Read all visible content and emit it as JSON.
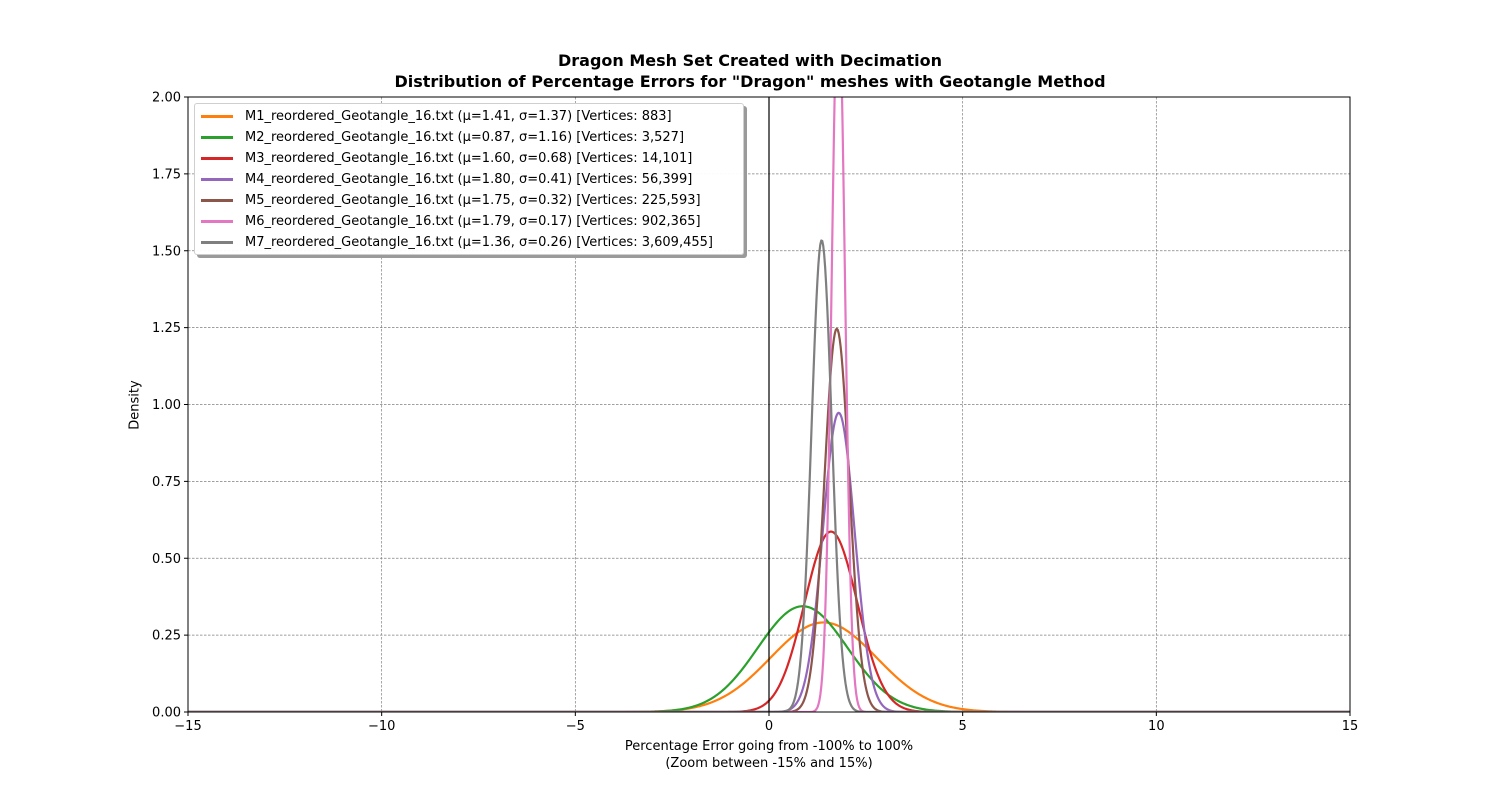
{
  "chart_data": {
    "type": "line",
    "title": "Dragon Mesh Set Created with Decimation",
    "subtitle": "Distribution of Percentage Errors for \"Dragon\" meshes with Geotangle Method",
    "xlabel": "Percentage Error going from -100% to 100%",
    "xlabel_note": "(Zoom between -15% and 15%)",
    "ylabel": "Density",
    "xlim": [
      -15,
      15
    ],
    "ylim": [
      0,
      2
    ],
    "x_ticks": [
      -15,
      -10,
      -5,
      0,
      5,
      10,
      15
    ],
    "x_tick_labels": [
      "−15",
      "−10",
      "−5",
      "0",
      "5",
      "10",
      "15"
    ],
    "y_ticks": [
      0,
      0.25,
      0.5,
      0.75,
      1.0,
      1.25,
      1.5,
      1.75,
      2.0
    ],
    "y_tick_labels": [
      "0.00",
      "0.25",
      "0.50",
      "0.75",
      "1.00",
      "1.25",
      "1.50",
      "1.75",
      "2.00"
    ],
    "grid": true,
    "vertical_reference_line": 0,
    "legend_position": "upper-left",
    "series": [
      {
        "name": "M1_reordered_Geotangle_16.txt (μ=1.41, σ=1.37) [Vertices: 883]",
        "mu": 1.41,
        "sigma": 1.37,
        "color": "#ff7f0e"
      },
      {
        "name": "M2_reordered_Geotangle_16.txt (μ=0.87, σ=1.16) [Vertices: 3,527]",
        "mu": 0.87,
        "sigma": 1.16,
        "color": "#2ca02c"
      },
      {
        "name": "M3_reordered_Geotangle_16.txt (μ=1.60, σ=0.68) [Vertices: 14,101]",
        "mu": 1.6,
        "sigma": 0.68,
        "color": "#d62728"
      },
      {
        "name": "M4_reordered_Geotangle_16.txt (μ=1.80, σ=0.41) [Vertices: 56,399]",
        "mu": 1.8,
        "sigma": 0.41,
        "color": "#9467bd"
      },
      {
        "name": "M5_reordered_Geotangle_16.txt (μ=1.75, σ=0.32) [Vertices: 225,593]",
        "mu": 1.75,
        "sigma": 0.32,
        "color": "#8c564b"
      },
      {
        "name": "M6_reordered_Geotangle_16.txt (μ=1.79, σ=0.17) [Vertices: 902,365]",
        "mu": 1.79,
        "sigma": 0.17,
        "color": "#e377c2"
      },
      {
        "name": "M7_reordered_Geotangle_16.txt (μ=1.36, σ=0.26) [Vertices: 3,609,455]",
        "mu": 1.36,
        "sigma": 0.26,
        "color": "#7f7f7f"
      }
    ]
  }
}
